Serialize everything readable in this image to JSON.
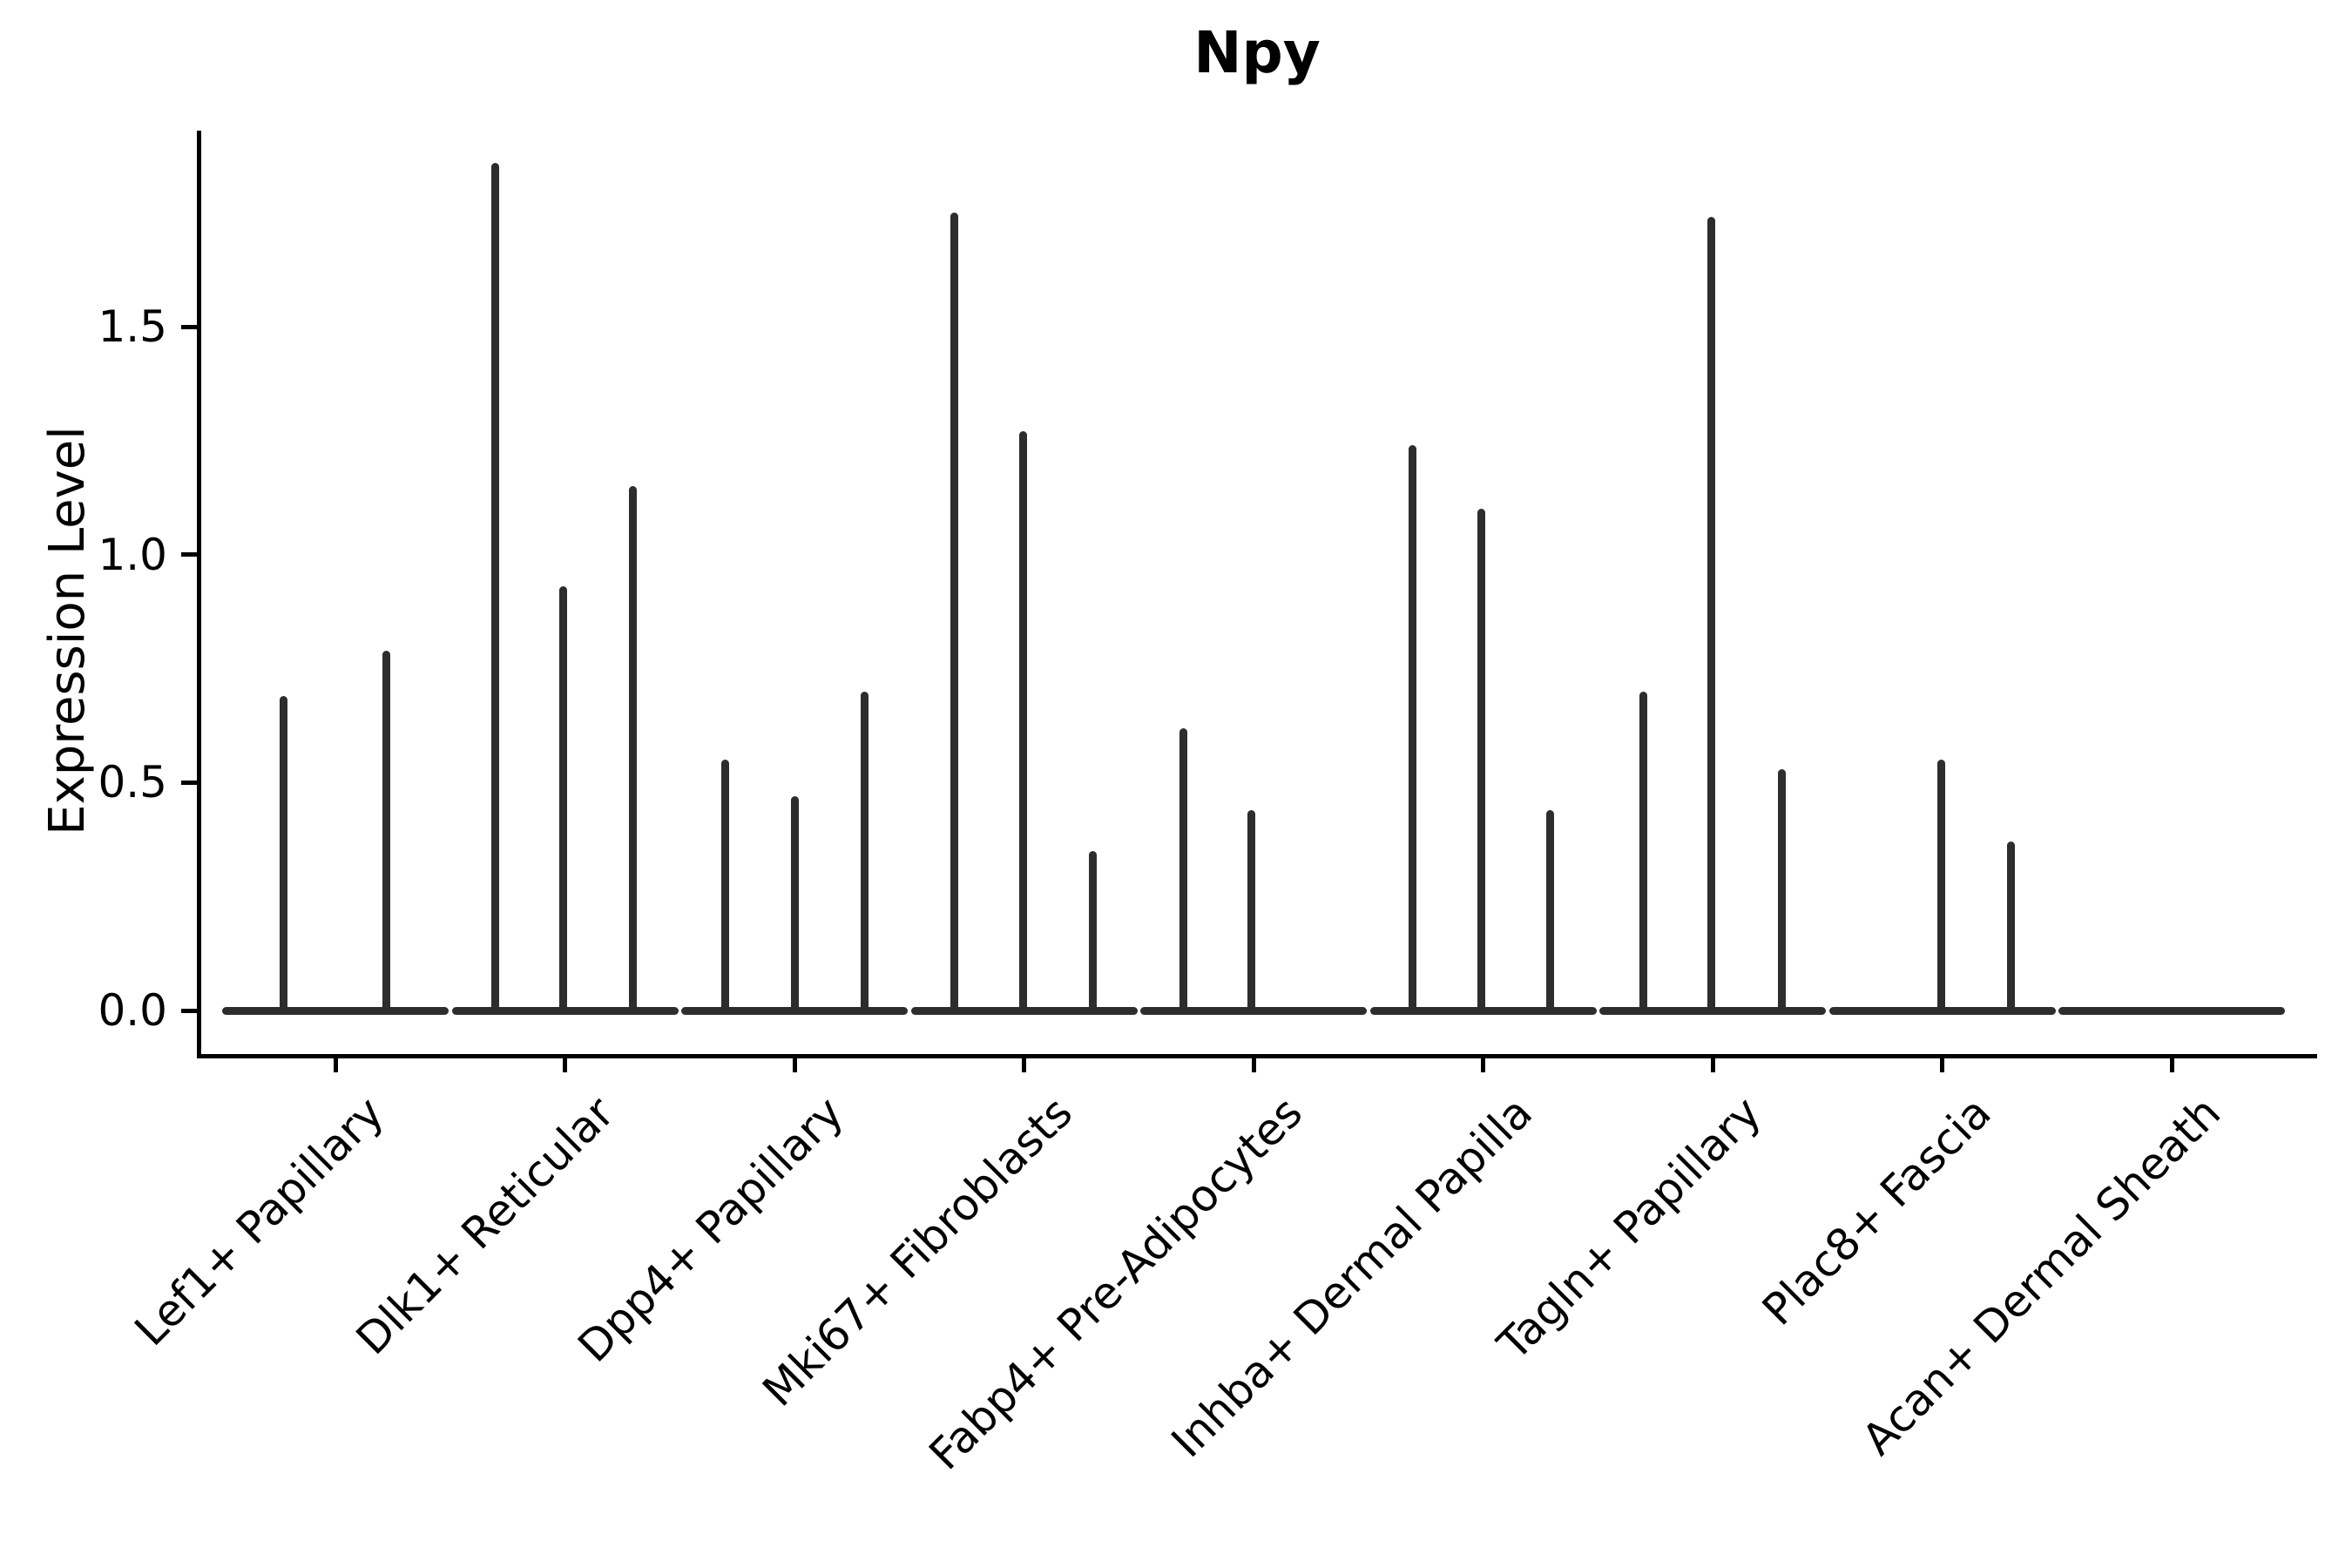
{
  "title": "Npy",
  "y_axis": {
    "label": "Expression Level",
    "tick_labels": [
      "0.0",
      "0.5",
      "1.0",
      "1.5"
    ]
  },
  "chart_data": {
    "type": "violin",
    "title": "Npy",
    "xlabel": "",
    "ylabel": "Expression Level",
    "yticks": [
      0.0,
      0.5,
      1.0,
      1.5
    ],
    "ytick_labels": [
      "0.0",
      "0.5",
      "1.0",
      "1.5"
    ],
    "ylim": [
      -0.1,
      1.95
    ],
    "grid": false,
    "legend": false,
    "categories": [
      "Lef1+ Papillary",
      "Dlk1+ Reticular",
      "Dpp4+ Papillary",
      "Mki67+ Fibroblasts",
      "Fabp4+ Pre-Adipocytes",
      "Inhba+ Dermal Papilla",
      "Tagln+ Papillary",
      "Plac8+ Fascia",
      "Acan+ Dermal Sheath"
    ],
    "violin_style": "narrow spikes rising from wide flat base at zero expression",
    "groups": [
      {
        "category": "Lef1+ Papillary",
        "spikes": [
          {
            "offset": -60,
            "peak": 0.69
          },
          {
            "offset": 58,
            "peak": 0.79
          }
        ]
      },
      {
        "category": "Dlk1+ Reticular",
        "spikes": [
          {
            "offset": -80,
            "peak": 1.86
          },
          {
            "offset": -2,
            "peak": 0.93
          },
          {
            "offset": 78,
            "peak": 1.15
          }
        ]
      },
      {
        "category": "Dpp4+ Papillary",
        "spikes": [
          {
            "offset": -80,
            "peak": 0.55
          },
          {
            "offset": 0,
            "peak": 0.47
          },
          {
            "offset": 80,
            "peak": 0.7
          }
        ]
      },
      {
        "category": "Mki67+ Fibroblasts",
        "spikes": [
          {
            "offset": -80,
            "peak": 1.75
          },
          {
            "offset": -1,
            "peak": 1.27
          },
          {
            "offset": 79,
            "peak": 0.35
          }
        ]
      },
      {
        "category": "Fabp4+ Pre-Adipocytes",
        "spikes": [
          {
            "offset": -81,
            "peak": 0.62
          },
          {
            "offset": -3,
            "peak": 0.44
          }
        ]
      },
      {
        "category": "Inhba+ Dermal Papilla",
        "spikes": [
          {
            "offset": -81,
            "peak": 1.24
          },
          {
            "offset": -2,
            "peak": 1.1
          },
          {
            "offset": 77,
            "peak": 0.44
          }
        ]
      },
      {
        "category": "Tagln+ Papillary",
        "spikes": [
          {
            "offset": -80,
            "peak": 0.7
          },
          {
            "offset": -2,
            "peak": 1.74
          },
          {
            "offset": 79,
            "peak": 0.53
          }
        ]
      },
      {
        "category": "Plac8+ Fascia",
        "spikes": [
          {
            "offset": -1,
            "peak": 0.55
          },
          {
            "offset": 79,
            "peak": 0.37
          }
        ]
      },
      {
        "category": "Acan+ Dermal Sheath",
        "spikes": []
      }
    ],
    "colors": {
      "violin": "#2d2d2d",
      "spine": "#000000",
      "text": "#000000",
      "background": "#ffffff"
    }
  }
}
